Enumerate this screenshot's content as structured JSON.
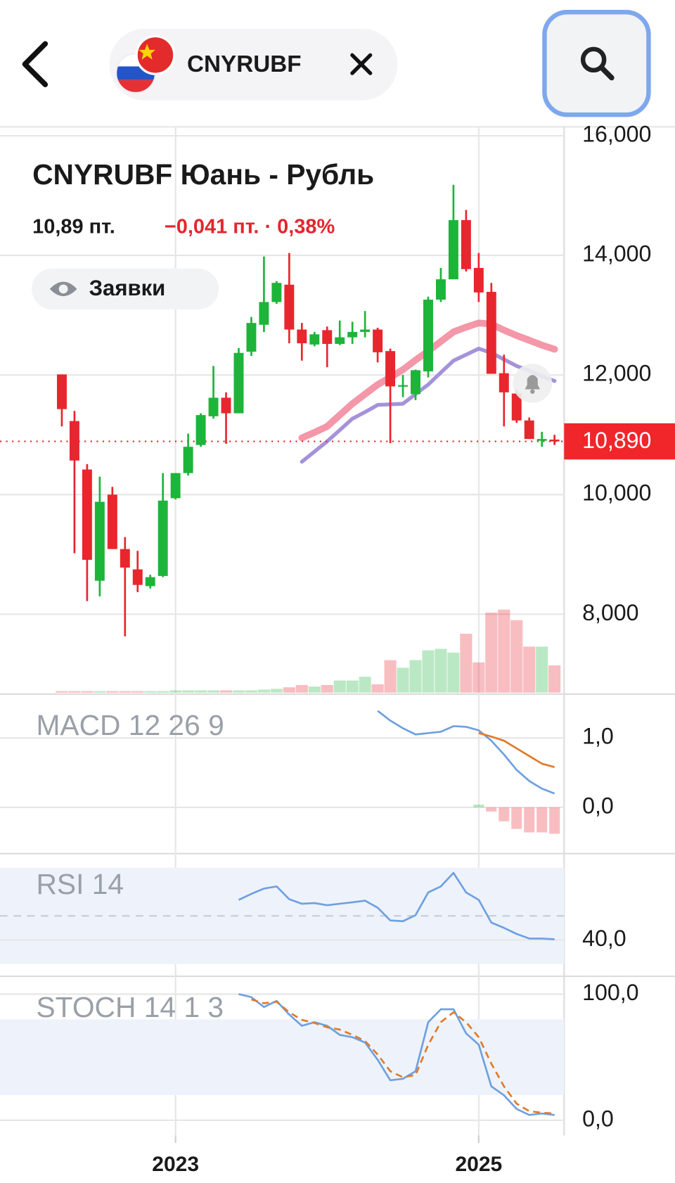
{
  "header": {
    "symbol": "CNYRUBF"
  },
  "chart_data": [
    {
      "type": "candlestick",
      "title": "CNYRUBF Юань - Рубль",
      "price": "10,89 пт.",
      "change": "−0,041 пт. · 0,38%",
      "orders_button": "Заявки",
      "categories": [
        null,
        null,
        null,
        null,
        null,
        null,
        null,
        null,
        null,
        "2023",
        null,
        null,
        null,
        null,
        null,
        null,
        null,
        null,
        null,
        null,
        null,
        null,
        null,
        null,
        null,
        null,
        null,
        null,
        null,
        null,
        null,
        null,
        null,
        "2025",
        null,
        null,
        null,
        null,
        null,
        null
      ],
      "open": [
        12010,
        11230,
        10420,
        8560,
        10000,
        9090,
        8750,
        8470,
        8640,
        9940,
        10360,
        10830,
        11310,
        11620,
        11360,
        12390,
        12840,
        13220,
        13510,
        12760,
        12510,
        12750,
        12520,
        12630,
        12720,
        12760,
        12400,
        11810,
        11680,
        12060,
        13260,
        13600,
        14590,
        13790,
        13390,
        12030,
        11690,
        11240,
        10900,
        10920
      ],
      "high": [
        12010,
        11400,
        10510,
        10300,
        10130,
        9290,
        9060,
        8660,
        10360,
        10360,
        11020,
        11360,
        12150,
        11710,
        12450,
        12970,
        13980,
        13570,
        14040,
        12870,
        12720,
        12810,
        12910,
        12890,
        13070,
        12790,
        12440,
        12000,
        12090,
        13310,
        13790,
        15180,
        14760,
        14040,
        13540,
        12340,
        11750,
        11290,
        11050,
        11000
      ],
      "low": [
        11140,
        9020,
        8220,
        8300,
        9090,
        7630,
        8370,
        8430,
        8620,
        9920,
        10320,
        10800,
        11270,
        10850,
        11360,
        12320,
        12720,
        13190,
        12530,
        12240,
        12480,
        12130,
        12500,
        12520,
        12630,
        12210,
        10860,
        11630,
        11580,
        11960,
        13220,
        13600,
        13730,
        13220,
        12020,
        11140,
        11200,
        10930,
        10800,
        10830
      ],
      "close": [
        11430,
        10570,
        8910,
        9880,
        9090,
        8780,
        8490,
        8620,
        9900,
        10360,
        10800,
        11330,
        11620,
        11360,
        12370,
        12870,
        13220,
        13540,
        12760,
        12530,
        12680,
        12520,
        12630,
        12720,
        12760,
        12380,
        11810,
        11830,
        12080,
        13260,
        13600,
        14590,
        13770,
        13380,
        12020,
        11710,
        11240,
        10930,
        10930,
        10890
      ],
      "volume": [
        2,
        2,
        2,
        2,
        2,
        2,
        2,
        2,
        2,
        3,
        3,
        3,
        3,
        3,
        3,
        3,
        4,
        5,
        7,
        10,
        8,
        10,
        16,
        16,
        21,
        11,
        43,
        33,
        43,
        56,
        58,
        53,
        78,
        40,
        106,
        110,
        96,
        61,
        61,
        36
      ],
      "up_color": "#1db43a",
      "down_color": "#e8262d",
      "ma": [
        {
          "color": "#f07d93",
          "values": [
            null,
            null,
            null,
            null,
            null,
            null,
            null,
            null,
            null,
            null,
            null,
            null,
            null,
            null,
            null,
            null,
            null,
            null,
            null,
            10950,
            11040,
            11140,
            11330,
            11520,
            11680,
            11840,
            11960,
            12090,
            12250,
            12400,
            12560,
            12720,
            12800,
            12870,
            12850,
            12750,
            12660,
            12580,
            12500,
            12430
          ]
        },
        {
          "color": "#9a86d6",
          "values": [
            null,
            null,
            null,
            null,
            null,
            null,
            null,
            null,
            null,
            null,
            null,
            null,
            null,
            null,
            null,
            null,
            null,
            null,
            null,
            10550,
            10720,
            10890,
            11080,
            11270,
            11380,
            11500,
            11510,
            11520,
            11680,
            11840,
            12040,
            12240,
            12340,
            12440,
            12370,
            12260,
            12150,
            12070,
            11980,
            11900
          ]
        }
      ],
      "last_price": {
        "value": 10890,
        "label": "10,890"
      },
      "ylim": [
        6690,
        16150
      ],
      "yticks": [
        {
          "value": 16000,
          "label": "16,000"
        },
        {
          "value": 14000,
          "label": "14,000"
        },
        {
          "value": 12000,
          "label": "12,000"
        },
        {
          "value": 10000,
          "label": "10,000"
        },
        {
          "value": 8000,
          "label": "8,000"
        }
      ],
      "grid": true
    },
    {
      "type": "macd",
      "title": "MACD 12 26 9",
      "series": [
        {
          "color": "#6fa0e0",
          "values": [
            null,
            null,
            null,
            null,
            null,
            null,
            null,
            null,
            null,
            null,
            null,
            null,
            null,
            null,
            null,
            null,
            null,
            null,
            null,
            null,
            null,
            null,
            null,
            null,
            null,
            1.39,
            1.25,
            1.14,
            1.05,
            1.07,
            1.09,
            1.17,
            1.16,
            1.11,
            0.96,
            0.76,
            0.54,
            0.38,
            0.27,
            0.2
          ]
        },
        {
          "color": "#e07b2a",
          "values": [
            null,
            null,
            null,
            null,
            null,
            null,
            null,
            null,
            null,
            null,
            null,
            null,
            null,
            null,
            null,
            null,
            null,
            null,
            null,
            null,
            null,
            null,
            null,
            null,
            null,
            null,
            null,
            null,
            null,
            null,
            null,
            null,
            null,
            1.07,
            1.02,
            0.96,
            0.85,
            0.74,
            0.63,
            0.58
          ]
        }
      ],
      "histogram": [
        null,
        null,
        null,
        null,
        null,
        null,
        null,
        null,
        null,
        null,
        null,
        null,
        null,
        null,
        null,
        null,
        null,
        null,
        null,
        null,
        null,
        null,
        null,
        null,
        null,
        null,
        null,
        null,
        null,
        null,
        null,
        null,
        null,
        0.04,
        -0.06,
        -0.2,
        -0.31,
        -0.36,
        -0.36,
        -0.38
      ],
      "up_color": "#1db43a",
      "down_color": "#e8262d",
      "ylim": [
        -0.65,
        1.61
      ],
      "yticks": [
        {
          "value": 1,
          "label": "1,0"
        },
        {
          "value": 0,
          "label": "0,0"
        }
      ],
      "grid": true
    },
    {
      "type": "rsi",
      "title": "RSI 14",
      "series": [
        {
          "color": "#6fa0e0",
          "values": [
            null,
            null,
            null,
            null,
            null,
            null,
            null,
            null,
            null,
            null,
            null,
            null,
            null,
            null,
            56.6,
            59.1,
            61.3,
            62.2,
            56.9,
            55.0,
            55.3,
            54.4,
            55.0,
            55.6,
            56.3,
            53.4,
            48.1,
            47.8,
            50.3,
            59.7,
            62.2,
            67.8,
            59.7,
            56.6,
            47.2,
            45.0,
            42.5,
            40.6,
            40.6,
            40.3
          ]
        }
      ],
      "band": [
        30,
        70
      ],
      "midline": 50,
      "ylim": [
        25.6,
        75.3
      ],
      "yticks": [
        {
          "value": 40,
          "label": "40,0"
        }
      ],
      "grid": true
    },
    {
      "type": "stoch",
      "title": "STOCH 14 1 3",
      "series": [
        {
          "color": "#6fa0e0",
          "values": [
            null,
            null,
            null,
            null,
            null,
            null,
            null,
            null,
            null,
            null,
            null,
            null,
            null,
            null,
            100,
            97.6,
            89.8,
            94.6,
            83.8,
            74.9,
            77.8,
            74.9,
            67.7,
            65.9,
            61.7,
            47.9,
            31.7,
            32.9,
            38.9,
            77.8,
            88.0,
            88.0,
            68.9,
            59.9,
            26.9,
            19.8,
            9.0,
            4.2,
            5.4,
            4.2
          ]
        },
        {
          "color": "#e07b2a",
          "dashed": true,
          "values": [
            null,
            null,
            null,
            null,
            null,
            null,
            null,
            null,
            null,
            null,
            null,
            null,
            null,
            null,
            null,
            95.8,
            92.8,
            94.0,
            85.6,
            79.6,
            77.2,
            73.7,
            71.9,
            67.7,
            62.9,
            52.1,
            38.9,
            34.1,
            35.9,
            59.9,
            77.8,
            85.6,
            77.8,
            65.9,
            44.9,
            26.9,
            13.2,
            7.2,
            6.0,
            5.4
          ]
        }
      ],
      "band": [
        20,
        80
      ],
      "ylim": [
        -12,
        113
      ],
      "yticks": [
        {
          "value": 100,
          "label": "100,0"
        },
        {
          "value": 0,
          "label": "0,0"
        }
      ],
      "grid": true
    }
  ]
}
